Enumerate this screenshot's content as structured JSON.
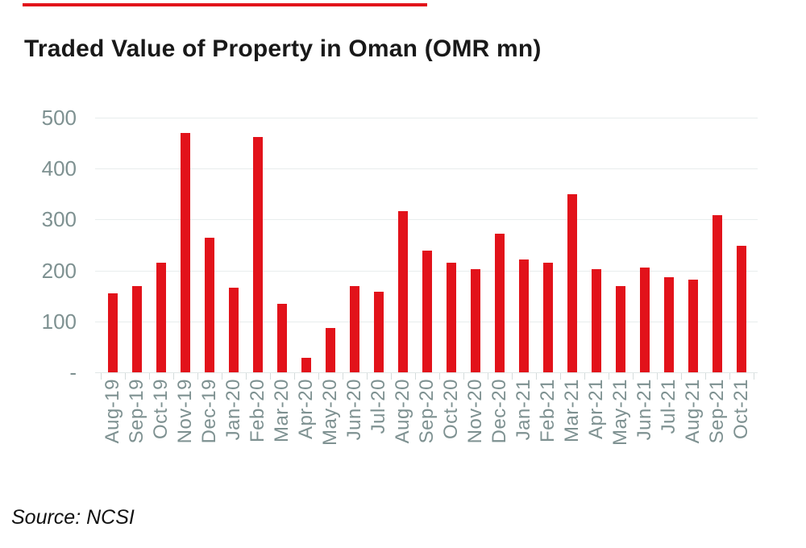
{
  "page": {
    "title": "Traded Value of Property in Oman (OMR mn)",
    "source_note": "Source: NCSI"
  },
  "decor": {
    "top_rule_color": "#e2121a"
  },
  "chart_data": {
    "type": "bar",
    "title": "Traded Value of Property in Oman (OMR mn)",
    "xlabel": "",
    "ylabel": "",
    "ylim": [
      0,
      500
    ],
    "grid": "horizontal-light",
    "legend": "none",
    "bar_color": "#e2121a",
    "axis_label_color": "#7e9191",
    "gridline_color": "#e8eded",
    "tick_color": "#d5dcdc",
    "yticks": [
      {
        "label": "500",
        "value": 500
      },
      {
        "label": "400",
        "value": 400
      },
      {
        "label": "300",
        "value": 300
      },
      {
        "label": "200",
        "value": 200
      },
      {
        "label": "100",
        "value": 100
      },
      {
        "label": "-",
        "value": 0
      }
    ],
    "categories": [
      "Aug-19",
      "Sep-19",
      "Oct-19",
      "Nov-19",
      "Dec-19",
      "Jan-20",
      "Feb-20",
      "Mar-20",
      "Apr-20",
      "May-20",
      "Jun-20",
      "Jul-20",
      "Aug-20",
      "Sep-20",
      "Oct-20",
      "Nov-20",
      "Dec-20",
      "Jan-21",
      "Feb-21",
      "Mar-21",
      "Apr-21",
      "May-21",
      "Jun-21",
      "Jul-21",
      "Aug-21",
      "Sep-21",
      "Oct-21"
    ],
    "values": [
      155,
      170,
      215,
      470,
      265,
      166,
      462,
      135,
      28,
      87,
      170,
      158,
      317,
      239,
      215,
      202,
      272,
      222,
      215,
      350,
      202,
      170,
      206,
      186,
      182,
      309,
      248
    ],
    "source": "Source: NCSI"
  }
}
